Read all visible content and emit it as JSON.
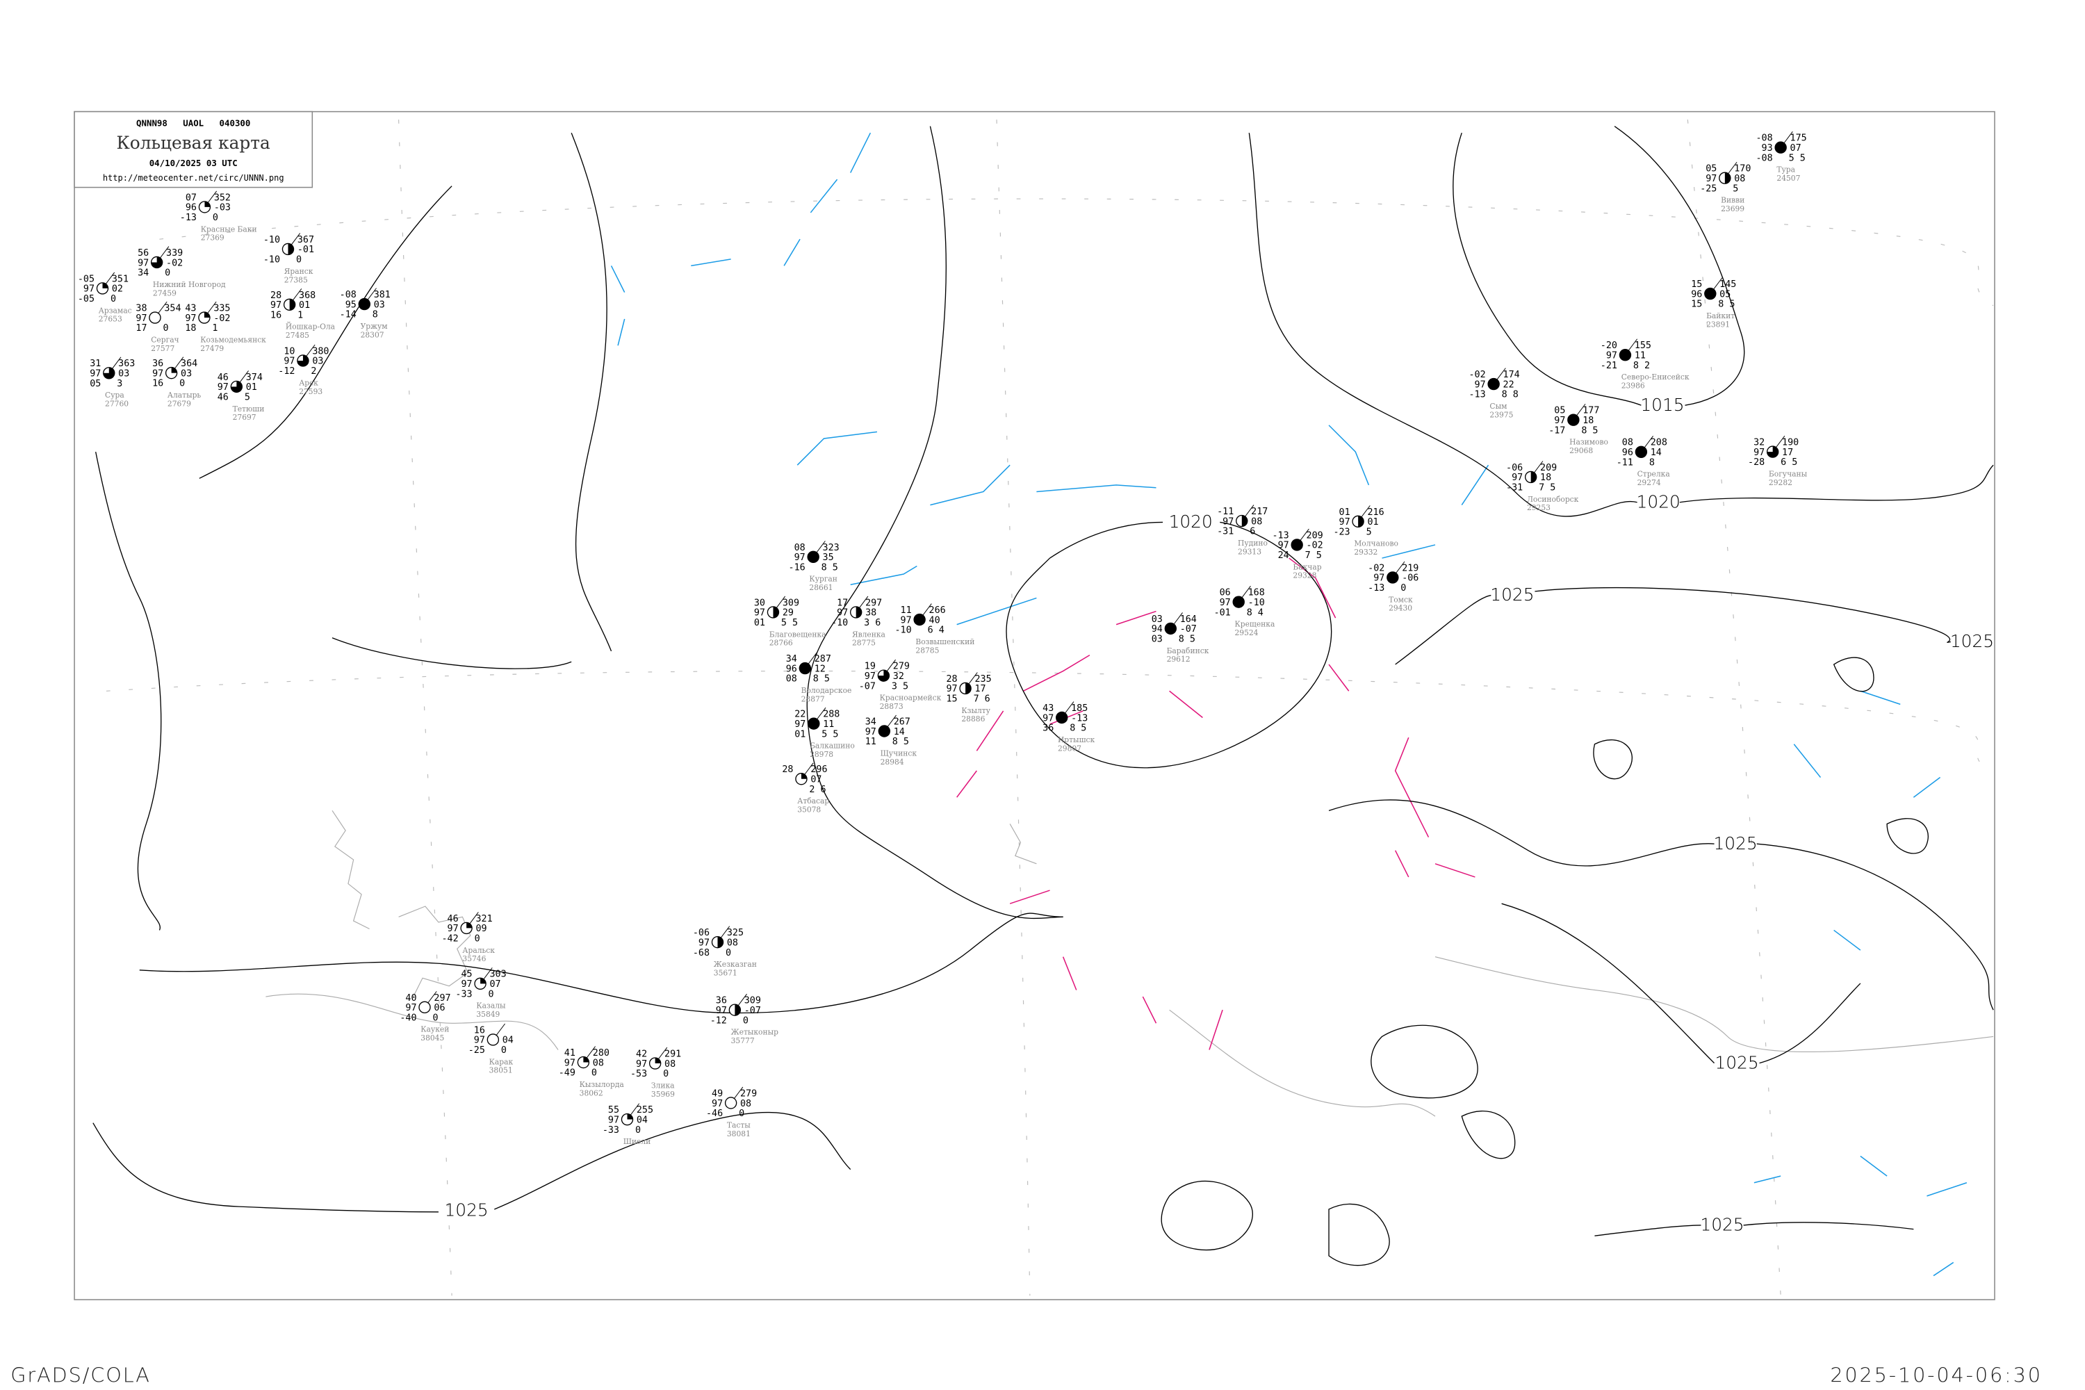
{
  "header": {
    "bulletin": "QNNN98   UAOL   040300",
    "title": "Кольцевая карта",
    "datetime": "04/10/2025 03 UTC",
    "url": "http://meteocenter.net/circ/UNNN.png"
  },
  "footer": {
    "left": "GrADS/COLA",
    "right": "2025-10-04-06:30"
  },
  "colors": {
    "isobar": "#000000",
    "river": "#1a9be6",
    "front": "#e0157a",
    "coast": "#aaaaaa",
    "frame": "#888888",
    "station_name": "#888888"
  },
  "isobar_labels": [
    "1025",
    "1020",
    "1015",
    "1025",
    "1020",
    "1025",
    "1025",
    "1025",
    "1025"
  ],
  "stations": [
    {
      "name": "Нижний Новгород",
      "id": "27459",
      "t": "56",
      "vis": "97",
      "td": "34",
      "p": "339",
      "dp": "-02",
      "x": "0",
      "cover": 0.75
    },
    {
      "name": "Красные Баки",
      "id": "27369",
      "t": "07",
      "vis": "96",
      "td": "-13",
      "p": "352",
      "dp": "-03",
      "x": "0",
      "cover": 0.25
    },
    {
      "name": "Арзамас",
      "id": "27653",
      "t": "-05",
      "vis": "97",
      "td": "-05",
      "p": "351",
      "dp": "02",
      "x": "0",
      "cover": 0.25
    },
    {
      "name": "Сергач",
      "id": "27577",
      "t": "38",
      "vis": "97",
      "td": "17",
      "p": "354",
      "dp": "",
      "x": "0",
      "cover": 0
    },
    {
      "name": "Козьмодемьянск",
      "id": "27479",
      "t": "43",
      "vis": "97",
      "td": "18",
      "p": "335",
      "dp": "-02",
      "x": "1",
      "cover": 0.25
    },
    {
      "name": "Йошкар-Ола",
      "id": "27485",
      "t": "28",
      "vis": "97",
      "td": "16",
      "p": "368",
      "dp": "01",
      "x": "1",
      "cover": 0.5
    },
    {
      "name": "Яранск",
      "id": "27385",
      "t": "-10",
      "vis": "",
      "td": "-10",
      "p": "367",
      "dp": "-01",
      "x": "0",
      "cover": 0.5
    },
    {
      "name": "Алатырь",
      "id": "27679",
      "t": "36",
      "vis": "97",
      "td": "16",
      "p": "364",
      "dp": "03",
      "x": "0",
      "cover": 0.25
    },
    {
      "name": "Сура",
      "id": "27760",
      "t": "31",
      "vis": "97",
      "td": "05",
      "p": "363",
      "dp": "03",
      "x": "3",
      "cover": 0.75
    },
    {
      "name": "Арск",
      "id": "27593",
      "t": "10",
      "vis": "97",
      "td": "-12",
      "p": "380",
      "dp": "03",
      "x": "2",
      "cover": 0.75
    },
    {
      "name": "Уржум",
      "id": "28307",
      "t": "-08",
      "vis": "95",
      "td": "-14",
      "p": "381",
      "dp": "03",
      "x": "8",
      "cover": 1
    },
    {
      "name": "Тетюши",
      "id": "27697",
      "t": "46",
      "vis": "97",
      "td": "46",
      "p": "374",
      "dp": "01",
      "x": "5",
      "cover": 0.75
    },
    {
      "name": "Пудино",
      "id": "29313",
      "t": "-11",
      "vis": "97",
      "td": "-31",
      "p": "217",
      "dp": "08",
      "x": "6",
      "cover": 0.5
    },
    {
      "name": "Бакчар",
      "id": "29328",
      "t": "-13",
      "vis": "97",
      "td": "24",
      "p": "209",
      "dp": "-02",
      "x": "7 5",
      "cover": 1
    },
    {
      "name": "Томск",
      "id": "29430",
      "t": "-02",
      "vis": "97",
      "td": "-13",
      "p": "219",
      "dp": "-06",
      "x": "0",
      "cover": 1
    },
    {
      "name": "Крещенка",
      "id": "29524",
      "t": "06",
      "vis": "97",
      "td": "-01",
      "p": "168",
      "dp": "-10",
      "x": "8 4",
      "cover": 1
    },
    {
      "name": "Молчаново",
      "id": "29332",
      "t": "01",
      "vis": "97",
      "td": "-23",
      "p": "216",
      "dp": "01",
      "x": "5",
      "cover": 0.5
    },
    {
      "name": "Барабинск",
      "id": "29612",
      "t": "03",
      "vis": "94",
      "td": "03",
      "p": "164",
      "dp": "-07",
      "x": "8 5",
      "cover": 1
    },
    {
      "name": "Сым",
      "id": "23975",
      "t": "-02",
      "vis": "97",
      "td": "-13",
      "p": "174",
      "dp": "22",
      "x": "8 8",
      "cover": 1
    },
    {
      "name": "Северо-Енисейск",
      "id": "23986",
      "t": "-20",
      "vis": "97",
      "td": "-21",
      "p": "155",
      "dp": "11",
      "x": "8 2",
      "cover": 1
    },
    {
      "name": "Назимово",
      "id": "29068",
      "t": "05",
      "vis": "97",
      "td": "-17",
      "p": "177",
      "dp": "18",
      "x": "8 5",
      "cover": 1
    },
    {
      "name": "Лосиноборск",
      "id": "29253",
      "t": "-06",
      "vis": "97",
      "td": "-31",
      "p": "209",
      "dp": "18",
      "x": "7 5",
      "cover": 0.5
    },
    {
      "name": "Стрелка",
      "id": "29274",
      "t": "08",
      "vis": "96",
      "td": "-11",
      "p": "208",
      "dp": "14",
      "x": "8",
      "cover": 1
    },
    {
      "name": "Богучаны",
      "id": "29282",
      "t": "32",
      "vis": "97",
      "td": "-28",
      "p": "190",
      "dp": "17",
      "x": "6 5",
      "cover": 0.75
    },
    {
      "name": "Тура",
      "id": "24507",
      "t": "-08",
      "vis": "93",
      "td": "-08",
      "p": "175",
      "dp": "07",
      "x": "5 5",
      "cover": 1
    },
    {
      "name": "Вивви",
      "id": "23699",
      "t": "05",
      "vis": "97",
      "td": "-25",
      "p": "170",
      "dp": "08",
      "x": "5",
      "cover": 0.5
    },
    {
      "name": "Байкит",
      "id": "23891",
      "t": "15",
      "vis": "96",
      "td": "15",
      "p": "145",
      "dp": "05",
      "x": "8 5",
      "cover": 1
    },
    {
      "name": "Курган",
      "id": "28661",
      "t": "08",
      "vis": "97",
      "td": "-16",
      "p": "323",
      "dp": "35",
      "x": "8 5",
      "cover": 1
    },
    {
      "name": "Благовещенка",
      "id": "28766",
      "t": "30",
      "vis": "97",
      "td": "01",
      "p": "309",
      "dp": "29",
      "x": "5 5",
      "cover": 0.5
    },
    {
      "name": "Явленка",
      "id": "28775",
      "t": "17",
      "vis": "97",
      "td": "-10",
      "p": "297",
      "dp": "38",
      "x": "3 6",
      "cover": 0.5
    },
    {
      "name": "Красноармейск",
      "id": "28873",
      "t": "19",
      "vis": "97",
      "td": "-07",
      "p": "279",
      "dp": "32",
      "x": "3 5",
      "cover": 0.75
    },
    {
      "name": "Возвышенский",
      "id": "28785",
      "t": "11",
      "vis": "97",
      "td": "-10",
      "p": "266",
      "dp": "40",
      "x": "6 4",
      "cover": 1
    },
    {
      "name": "Володарское",
      "id": "28877",
      "t": "34",
      "vis": "96",
      "td": "08",
      "p": "287",
      "dp": "12",
      "x": "8 5",
      "cover": 1
    },
    {
      "name": "Щучинск",
      "id": "28984",
      "t": "34",
      "vis": "97",
      "td": "11",
      "p": "267",
      "dp": "14",
      "x": "8 5",
      "cover": 1
    },
    {
      "name": "Балкашино",
      "id": "28978",
      "t": "22",
      "vis": "97",
      "td": "01",
      "p": "288",
      "dp": "11",
      "x": "5 5",
      "cover": 1
    },
    {
      "name": "Кзылту",
      "id": "28886",
      "t": "28",
      "vis": "97",
      "td": "15",
      "p": "235",
      "dp": "17",
      "x": "7 6",
      "cover": 0.5
    },
    {
      "name": "Атбасар",
      "id": "35078",
      "t": "28",
      "vis": "",
      "td": "",
      "p": "296",
      "dp": "07",
      "x": "2 6",
      "cover": 0.25
    },
    {
      "name": "Иртышск",
      "id": "29807",
      "t": "43",
      "vis": "97",
      "td": "36",
      "p": "185",
      "dp": "-13",
      "x": "8 5",
      "cover": 1
    },
    {
      "name": "Аральск",
      "id": "35746",
      "t": "46",
      "vis": "97",
      "td": "-42",
      "p": "321",
      "dp": "09",
      "x": "0",
      "cover": 0.25
    },
    {
      "name": "Казалы",
      "id": "35849",
      "t": "45",
      "vis": "97",
      "td": "-33",
      "p": "303",
      "dp": "07",
      "x": "0",
      "cover": 0.25
    },
    {
      "name": "Каукей",
      "id": "38045",
      "t": "40",
      "vis": "97",
      "td": "-40",
      "p": "297",
      "dp": "06",
      "x": "0",
      "cover": 0
    },
    {
      "name": "Карак",
      "id": "38051",
      "t": "16",
      "vis": "97",
      "td": "-25",
      "p": "",
      "dp": "04",
      "x": "0",
      "cover": 0
    },
    {
      "name": "Кызылорда",
      "id": "38062",
      "t": "41",
      "vis": "97",
      "td": "-49",
      "p": "280",
      "dp": "08",
      "x": "0",
      "cover": 0.25
    },
    {
      "name": "Злика",
      "id": "35969",
      "t": "42",
      "vis": "97",
      "td": "-53",
      "p": "291",
      "dp": "08",
      "x": "0",
      "cover": 0.25
    },
    {
      "name": "Жезказган",
      "id": "35671",
      "t": "-06",
      "vis": "97",
      "td": "-68",
      "p": "325",
      "dp": "08",
      "x": "0",
      "cover": 0.5
    },
    {
      "name": "Жетыконыр",
      "id": "35777",
      "t": "36",
      "vis": "97",
      "td": "-12",
      "p": "309",
      "dp": "-07",
      "x": "0",
      "cover": 0.5
    },
    {
      "name": "Тасты",
      "id": "38081",
      "t": "49",
      "vis": "97",
      "td": "-46",
      "p": "279",
      "dp": "08",
      "x": "0",
      "cover": 0
    },
    {
      "name": "Шиели",
      "id": "",
      "t": "55",
      "vis": "97",
      "td": "-33",
      "p": "255",
      "dp": "04",
      "x": "0",
      "cover": 0.25
    }
  ]
}
